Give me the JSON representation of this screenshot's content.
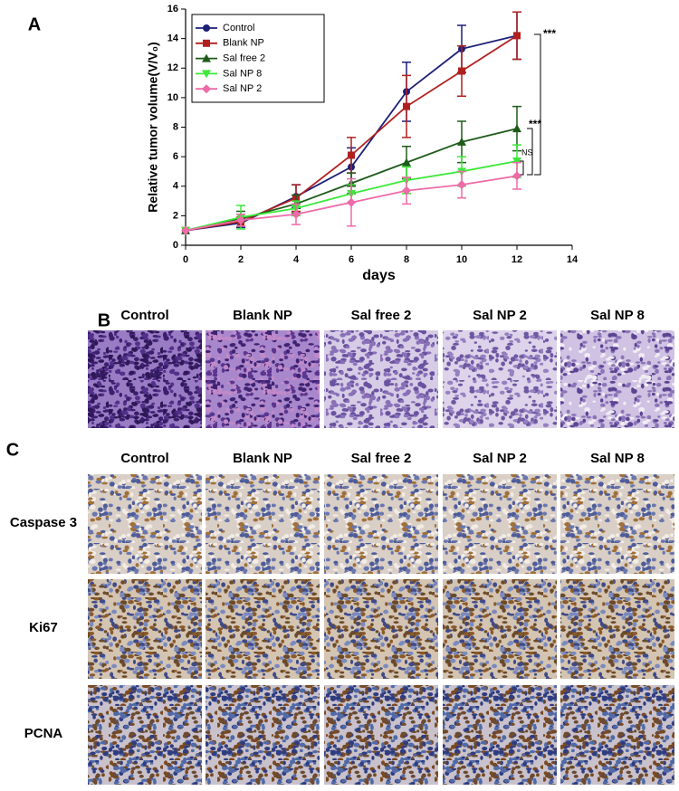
{
  "chart_data": {
    "type": "line",
    "x": [
      0,
      2,
      4,
      6,
      8,
      10,
      12
    ],
    "xlim": [
      0,
      14
    ],
    "xticks": [
      0,
      2,
      4,
      6,
      8,
      10,
      12,
      14
    ],
    "ylim": [
      0,
      16
    ],
    "yticks": [
      0,
      2,
      4,
      6,
      8,
      10,
      12,
      14,
      16
    ],
    "xlabel": "days",
    "ylabel": "Relative tumor volume(V/V₀)",
    "legend": "upper left",
    "annotations": [
      "***",
      "***",
      "NS"
    ],
    "series": [
      {
        "name": "Control",
        "color": "#1c1f78",
        "marker": "circle",
        "values": [
          1,
          1.5,
          3.3,
          5.3,
          10.4,
          13.3,
          14.2
        ],
        "errors": [
          0,
          0.3,
          0.8,
          1.3,
          2.0,
          1.6,
          1.6
        ]
      },
      {
        "name": "Blank NP",
        "color": "#b0201f",
        "marker": "square",
        "values": [
          1,
          1.6,
          3.2,
          6.1,
          9.4,
          11.8,
          14.2
        ],
        "errors": [
          0,
          0.3,
          0.9,
          1.2,
          2.1,
          1.7,
          1.6
        ]
      },
      {
        "name": "Sal free 2",
        "color": "#1e5b1a",
        "marker": "triangle",
        "values": [
          1,
          1.8,
          2.8,
          4.2,
          5.6,
          7.0,
          7.9
        ],
        "errors": [
          0,
          0.5,
          0.6,
          0.7,
          1.1,
          1.4,
          1.5
        ]
      },
      {
        "name": "Sal NP 8",
        "color": "#3de83a",
        "marker": "triangle-down",
        "values": [
          1,
          1.9,
          2.5,
          3.5,
          4.4,
          5.0,
          5.7
        ],
        "errors": [
          0,
          0.8,
          0.5,
          0.6,
          0.9,
          1.0,
          1.1
        ]
      },
      {
        "name": "Sal NP 2",
        "color": "#ee6aa8",
        "marker": "diamond",
        "values": [
          1,
          1.7,
          2.1,
          2.9,
          3.7,
          4.1,
          4.7
        ],
        "errors": [
          0,
          0.4,
          0.7,
          1.6,
          0.9,
          0.9,
          0.9
        ]
      }
    ]
  },
  "panel_labels": [
    "A",
    "B",
    "C"
  ],
  "he_panel": {
    "columns": [
      "Control",
      "Blank NP",
      "Sal free 2",
      "Sal NP 2",
      "Sal NP 8"
    ]
  },
  "ihc_panel": {
    "columns": [
      "Control",
      "Blank NP",
      "Sal free 2",
      "Sal NP 2",
      "Sal NP 8"
    ],
    "rows": [
      "Caspase 3",
      "Ki67",
      "PCNA"
    ]
  }
}
